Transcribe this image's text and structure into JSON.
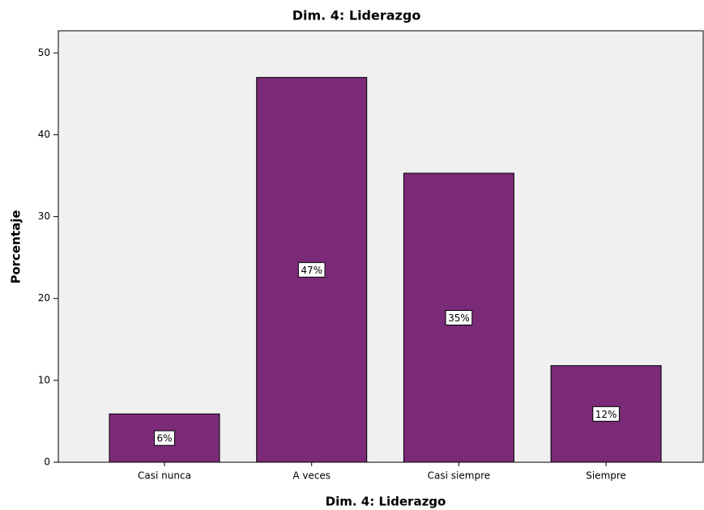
{
  "chart_data": {
    "type": "bar",
    "title": "Dim. 4: Liderazgo",
    "x_label": "Dim. 4: Liderazgo",
    "y_label": "Porcentaje",
    "categories": [
      "Casi nunca",
      "A veces",
      "Casi siempre",
      "Siempre"
    ],
    "values": [
      5.9,
      47.0,
      35.3,
      11.8
    ],
    "value_labels": [
      "6%",
      "47%",
      "35%",
      "12%"
    ],
    "color": "#7b2a78",
    "ylim": [
      0,
      52.7
    ],
    "yticks": [
      0,
      10,
      20,
      30,
      40,
      50
    ],
    "grid": false
  }
}
